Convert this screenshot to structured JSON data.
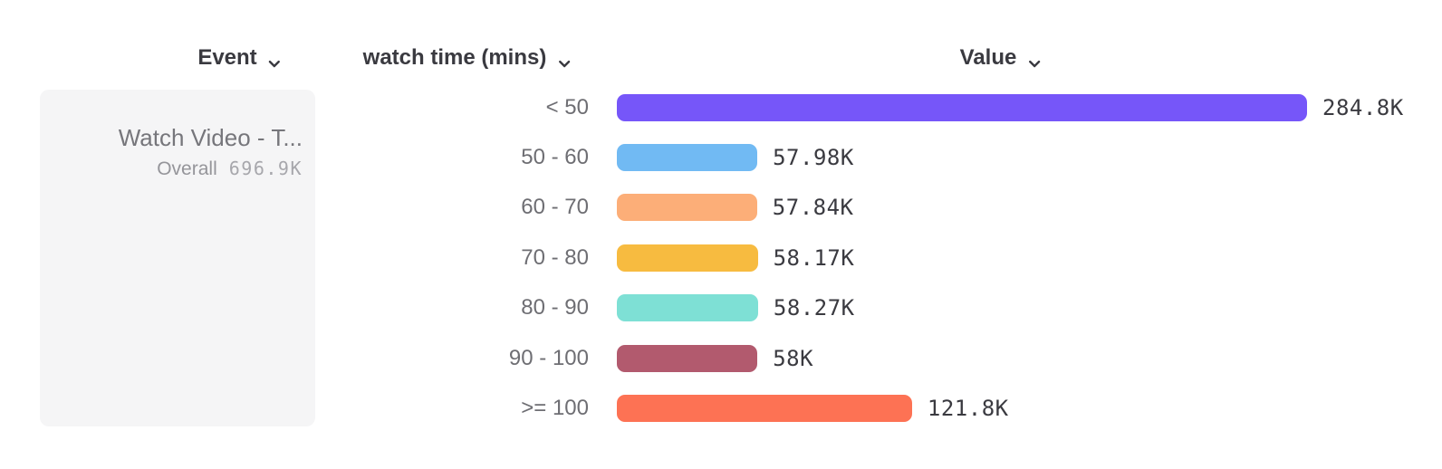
{
  "header": {
    "event": {
      "label": "Event",
      "icon": "chevron-down-icon"
    },
    "breakdown": {
      "label": "watch time (mins)",
      "icon": "chevron-down-icon"
    },
    "value": {
      "label": "Value",
      "icon": "chevron-down-icon"
    }
  },
  "legend_card": {
    "event_name": "Watch Video - T...",
    "overall_label": "Overall",
    "overall_value": "696.9K",
    "background": "#f5f5f6"
  },
  "chart_data": {
    "type": "bar",
    "orientation": "horizontal",
    "title": "",
    "xlabel": "Value",
    "ylabel": "watch time (mins)",
    "xlim": [
      0,
      284800
    ],
    "grid": false,
    "legend_position": "left-card",
    "categories": [
      "< 50",
      "50 - 60",
      "60 - 70",
      "70 - 80",
      "80 - 90",
      "90 - 100",
      ">= 100"
    ],
    "values": [
      284800,
      57980,
      57840,
      58170,
      58270,
      58000,
      121800
    ],
    "value_labels": [
      "284.8K",
      "57.98K",
      "57.84K",
      "58.17K",
      "58.27K",
      "58K",
      "121.8K"
    ],
    "bar_colors": [
      "#7656f9",
      "#71baf3",
      "#fcae78",
      "#f7bb40",
      "#7ee0d5",
      "#b25a6e",
      "#fd7254"
    ]
  },
  "colors": {
    "header_text": "#3a3a40",
    "category_text": "#6e6e73",
    "value_text": "#3a3a40",
    "card_title_text": "#76767b",
    "overall_label_text": "#95959a",
    "overall_value_text": "#a7a7ac"
  }
}
